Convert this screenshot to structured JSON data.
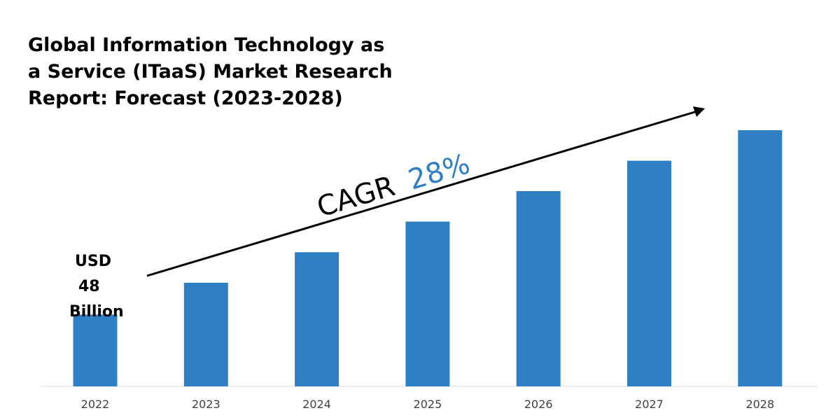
{
  "chart_data": {
    "type": "bar",
    "title": "Global Information Technology as\na Service (ITaaS) Market Research\nReport: Forecast (2023-2028)",
    "categories": [
      "2022",
      "2023",
      "2024",
      "2025",
      "2026",
      "2027",
      "2028"
    ],
    "values": [
      48,
      69.3,
      89.7,
      110.2,
      130.6,
      150.9,
      171.3
    ],
    "xlabel": "",
    "ylabel": "",
    "grid": false,
    "legend": "none",
    "bar_color": "#2f80c3",
    "annotations": {
      "start_label": [
        "USD",
        "48",
        "Billion"
      ],
      "cagr_prefix": "CAGR",
      "cagr_value": "28%",
      "trend_arrow": true
    }
  }
}
